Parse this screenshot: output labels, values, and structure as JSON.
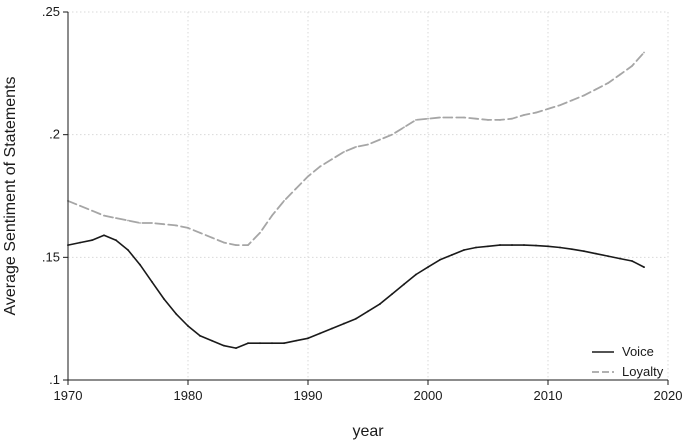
{
  "chart_data": {
    "type": "line",
    "xlabel": "year",
    "ylabel": "Average Sentiment of Statements",
    "xlim": [
      1970,
      2020
    ],
    "ylim": [
      0.1,
      0.25
    ],
    "x_ticks": [
      1970,
      1980,
      1990,
      2000,
      2010,
      2020
    ],
    "x_tick_labels": [
      "1970",
      "1980",
      "1990",
      "2000",
      "2010",
      "2020"
    ],
    "y_ticks": [
      0.1,
      0.15,
      0.2,
      0.25
    ],
    "y_tick_labels": [
      ".1",
      ".15",
      ".2",
      ".25"
    ],
    "grid": true,
    "legend_position": "bottom-right",
    "series": [
      {
        "name": "Voice",
        "color": "#1a1a1a",
        "dash": "solid",
        "x": [
          1970,
          1971,
          1972,
          1973,
          1974,
          1975,
          1976,
          1977,
          1978,
          1979,
          1980,
          1981,
          1982,
          1983,
          1984,
          1985,
          1986,
          1987,
          1988,
          1989,
          1990,
          1991,
          1992,
          1993,
          1994,
          1995,
          1996,
          1997,
          1998,
          1999,
          2000,
          2001,
          2002,
          2003,
          2004,
          2005,
          2006,
          2007,
          2008,
          2009,
          2010,
          2011,
          2012,
          2013,
          2014,
          2015,
          2016,
          2017,
          2018
        ],
        "values": [
          0.155,
          0.156,
          0.157,
          0.159,
          0.157,
          0.153,
          0.147,
          0.14,
          0.133,
          0.127,
          0.122,
          0.118,
          0.116,
          0.114,
          0.113,
          0.115,
          0.115,
          0.115,
          0.115,
          0.116,
          0.117,
          0.119,
          0.121,
          0.123,
          0.125,
          0.128,
          0.131,
          0.135,
          0.139,
          0.143,
          0.146,
          0.149,
          0.151,
          0.153,
          0.154,
          0.1545,
          0.155,
          0.155,
          0.155,
          0.1548,
          0.1545,
          0.154,
          0.1533,
          0.1525,
          0.1515,
          0.1505,
          0.1495,
          0.1485,
          0.146
        ]
      },
      {
        "name": "Loyalty",
        "color": "#a6a6a6",
        "dash": "dashed",
        "x": [
          1970,
          1971,
          1972,
          1973,
          1974,
          1975,
          1976,
          1977,
          1978,
          1979,
          1980,
          1981,
          1982,
          1983,
          1984,
          1985,
          1986,
          1987,
          1988,
          1989,
          1990,
          1991,
          1992,
          1993,
          1994,
          1995,
          1996,
          1997,
          1998,
          1999,
          2000,
          2001,
          2002,
          2003,
          2004,
          2005,
          2006,
          2007,
          2008,
          2009,
          2010,
          2011,
          2012,
          2013,
          2014,
          2015,
          2016,
          2017,
          2018
        ],
        "values": [
          0.173,
          0.171,
          0.169,
          0.167,
          0.166,
          0.165,
          0.164,
          0.164,
          0.1635,
          0.163,
          0.162,
          0.16,
          0.158,
          0.156,
          0.155,
          0.155,
          0.16,
          0.167,
          0.173,
          0.178,
          0.183,
          0.187,
          0.19,
          0.193,
          0.195,
          0.196,
          0.198,
          0.2,
          0.203,
          0.206,
          0.2065,
          0.207,
          0.207,
          0.207,
          0.2065,
          0.206,
          0.206,
          0.2065,
          0.208,
          0.209,
          0.2105,
          0.212,
          0.214,
          0.216,
          0.2185,
          0.221,
          0.2245,
          0.228,
          0.2335
        ]
      }
    ]
  }
}
